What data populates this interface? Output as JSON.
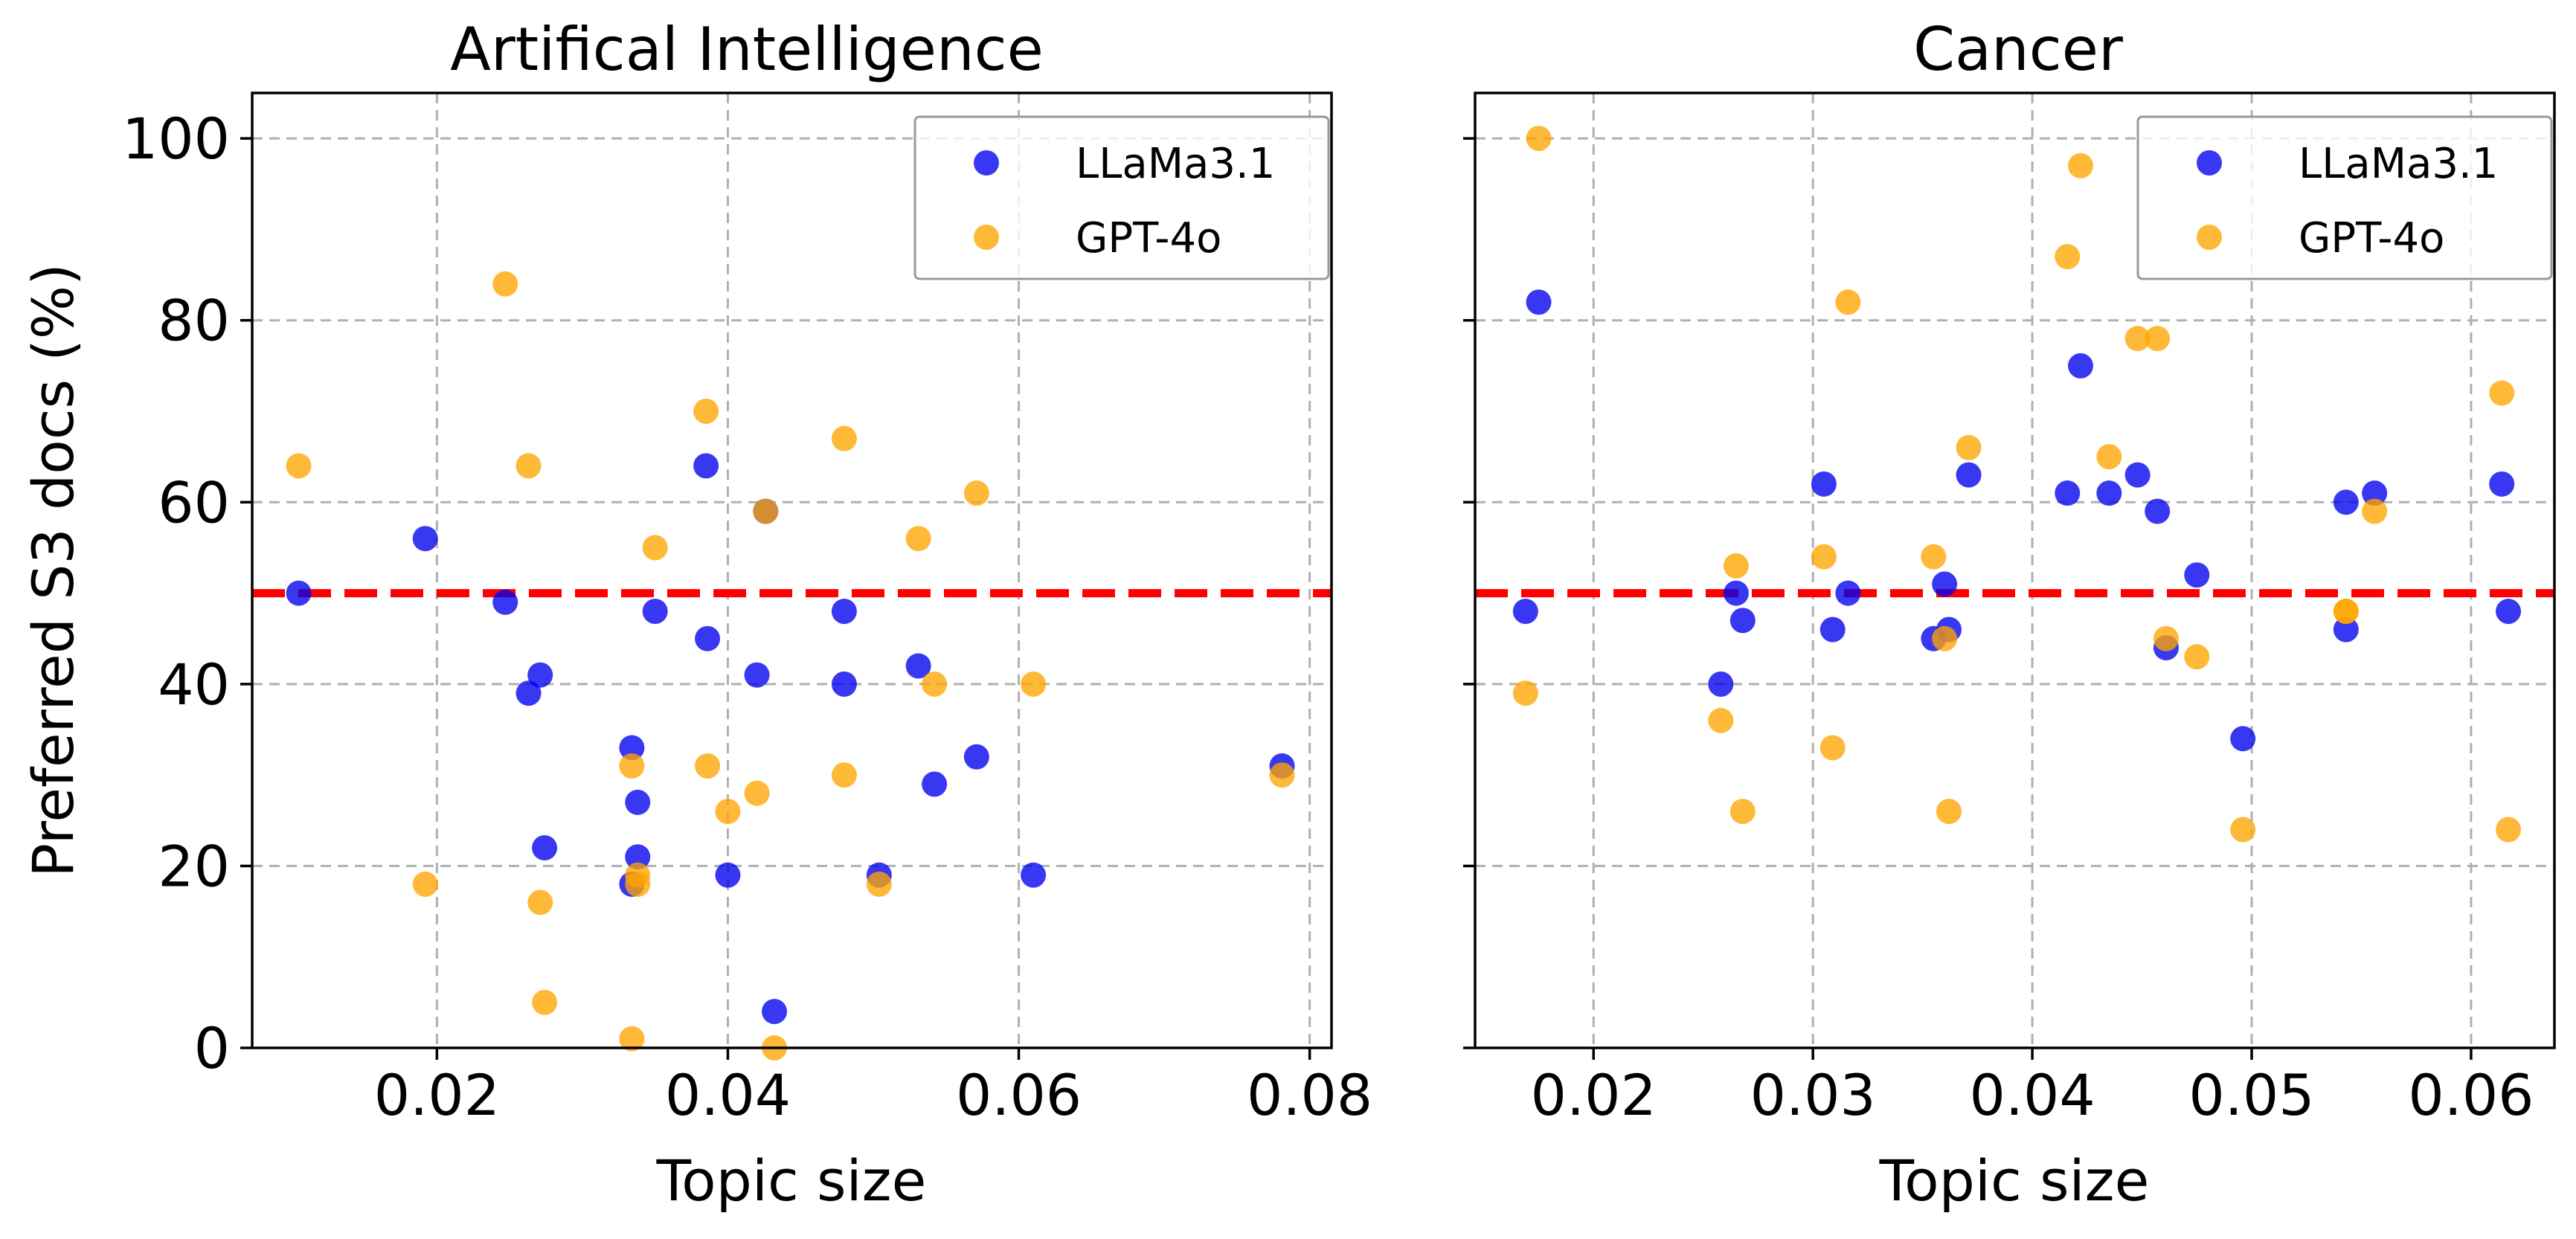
{
  "chart_data": [
    {
      "type": "scatter",
      "title": "Artifical Intelligence",
      "xlabel": "Topic size",
      "ylabel": "Preferred S3 docs (%)",
      "xlim": [
        0.0073,
        0.0815
      ],
      "ylim": [
        0,
        105
      ],
      "xticks": [
        0.02,
        0.04,
        0.06,
        0.08
      ],
      "xtick_labels": [
        "0.02",
        "0.04",
        "0.06",
        "0.08"
      ],
      "yticks": [
        0,
        20,
        40,
        60,
        80,
        100
      ],
      "ytick_labels": [
        "0",
        "20",
        "40",
        "60",
        "80",
        "100"
      ],
      "grid": true,
      "legend_position": "upper right",
      "reference_line_y": 50,
      "series": [
        {
          "name": "LLaMa3.1",
          "color": "#0000ee",
          "points": [
            [
              0.0105,
              50
            ],
            [
              0.0192,
              56
            ],
            [
              0.0247,
              49
            ],
            [
              0.0263,
              39
            ],
            [
              0.0271,
              41
            ],
            [
              0.0274,
              22
            ],
            [
              0.0334,
              33
            ],
            [
              0.0334,
              18
            ],
            [
              0.0338,
              27
            ],
            [
              0.0338,
              21
            ],
            [
              0.035,
              48
            ],
            [
              0.0385,
              64
            ],
            [
              0.0386,
              45
            ],
            [
              0.04,
              19
            ],
            [
              0.042,
              41
            ],
            [
              0.0426,
              59
            ],
            [
              0.0432,
              4
            ],
            [
              0.048,
              48
            ],
            [
              0.048,
              40
            ],
            [
              0.0504,
              19
            ],
            [
              0.0531,
              42
            ],
            [
              0.0542,
              29
            ],
            [
              0.0571,
              32
            ],
            [
              0.061,
              19
            ],
            [
              0.0781,
              31
            ]
          ]
        },
        {
          "name": "GPT-4o",
          "color": "#ffa500",
          "points": [
            [
              0.0105,
              64
            ],
            [
              0.0192,
              18
            ],
            [
              0.0247,
              84
            ],
            [
              0.0263,
              64
            ],
            [
              0.0271,
              16
            ],
            [
              0.0274,
              5
            ],
            [
              0.0334,
              31
            ],
            [
              0.0334,
              1
            ],
            [
              0.0338,
              19
            ],
            [
              0.0338,
              18
            ],
            [
              0.035,
              55
            ],
            [
              0.0385,
              70
            ],
            [
              0.0386,
              31
            ],
            [
              0.04,
              26
            ],
            [
              0.042,
              28
            ],
            [
              0.0426,
              59
            ],
            [
              0.0432,
              0
            ],
            [
              0.048,
              67
            ],
            [
              0.048,
              30
            ],
            [
              0.0504,
              18
            ],
            [
              0.0531,
              56
            ],
            [
              0.0542,
              40
            ],
            [
              0.0571,
              61
            ],
            [
              0.061,
              40
            ],
            [
              0.0781,
              30
            ]
          ]
        }
      ]
    },
    {
      "type": "scatter",
      "title": "Cancer",
      "xlabel": "Topic size",
      "ylabel": "",
      "xlim": [
        0.0146,
        0.0638
      ],
      "ylim": [
        0,
        105
      ],
      "xticks": [
        0.02,
        0.03,
        0.04,
        0.05,
        0.06
      ],
      "xtick_labels": [
        "0.02",
        "0.03",
        "0.04",
        "0.05",
        "0.06"
      ],
      "yticks": [
        0,
        20,
        40,
        60,
        80,
        100
      ],
      "ytick_labels": [],
      "grid": true,
      "legend_position": "upper right",
      "reference_line_y": 50,
      "series": [
        {
          "name": "LLaMa3.1",
          "color": "#0000ee",
          "points": [
            [
              0.0169,
              48
            ],
            [
              0.0175,
              82
            ],
            [
              0.0258,
              40
            ],
            [
              0.0265,
              50
            ],
            [
              0.0268,
              47
            ],
            [
              0.0305,
              62
            ],
            [
              0.0309,
              46
            ],
            [
              0.0316,
              50
            ],
            [
              0.0355,
              45
            ],
            [
              0.036,
              51
            ],
            [
              0.0362,
              46
            ],
            [
              0.0371,
              63
            ],
            [
              0.0416,
              61
            ],
            [
              0.0422,
              75
            ],
            [
              0.0435,
              61
            ],
            [
              0.0448,
              63
            ],
            [
              0.0457,
              59
            ],
            [
              0.0461,
              44
            ],
            [
              0.0475,
              52
            ],
            [
              0.0496,
              34
            ],
            [
              0.0543,
              60
            ],
            [
              0.0543,
              46
            ],
            [
              0.0556,
              61
            ],
            [
              0.0614,
              62
            ],
            [
              0.0617,
              48
            ]
          ]
        },
        {
          "name": "GPT-4o",
          "color": "#ffa500",
          "points": [
            [
              0.0169,
              39
            ],
            [
              0.0175,
              100
            ],
            [
              0.0258,
              36
            ],
            [
              0.0265,
              53
            ],
            [
              0.0268,
              26
            ],
            [
              0.0305,
              54
            ],
            [
              0.0309,
              33
            ],
            [
              0.0316,
              82
            ],
            [
              0.0355,
              54
            ],
            [
              0.036,
              45
            ],
            [
              0.0362,
              26
            ],
            [
              0.0371,
              66
            ],
            [
              0.0416,
              87
            ],
            [
              0.0422,
              97
            ],
            [
              0.0435,
              65
            ],
            [
              0.0448,
              78
            ],
            [
              0.0457,
              78
            ],
            [
              0.0461,
              45
            ],
            [
              0.0475,
              43
            ],
            [
              0.0496,
              24
            ],
            [
              0.0543,
              48
            ],
            [
              0.0543,
              48
            ],
            [
              0.0556,
              59
            ],
            [
              0.0614,
              72
            ],
            [
              0.0617,
              24
            ]
          ]
        }
      ]
    }
  ]
}
